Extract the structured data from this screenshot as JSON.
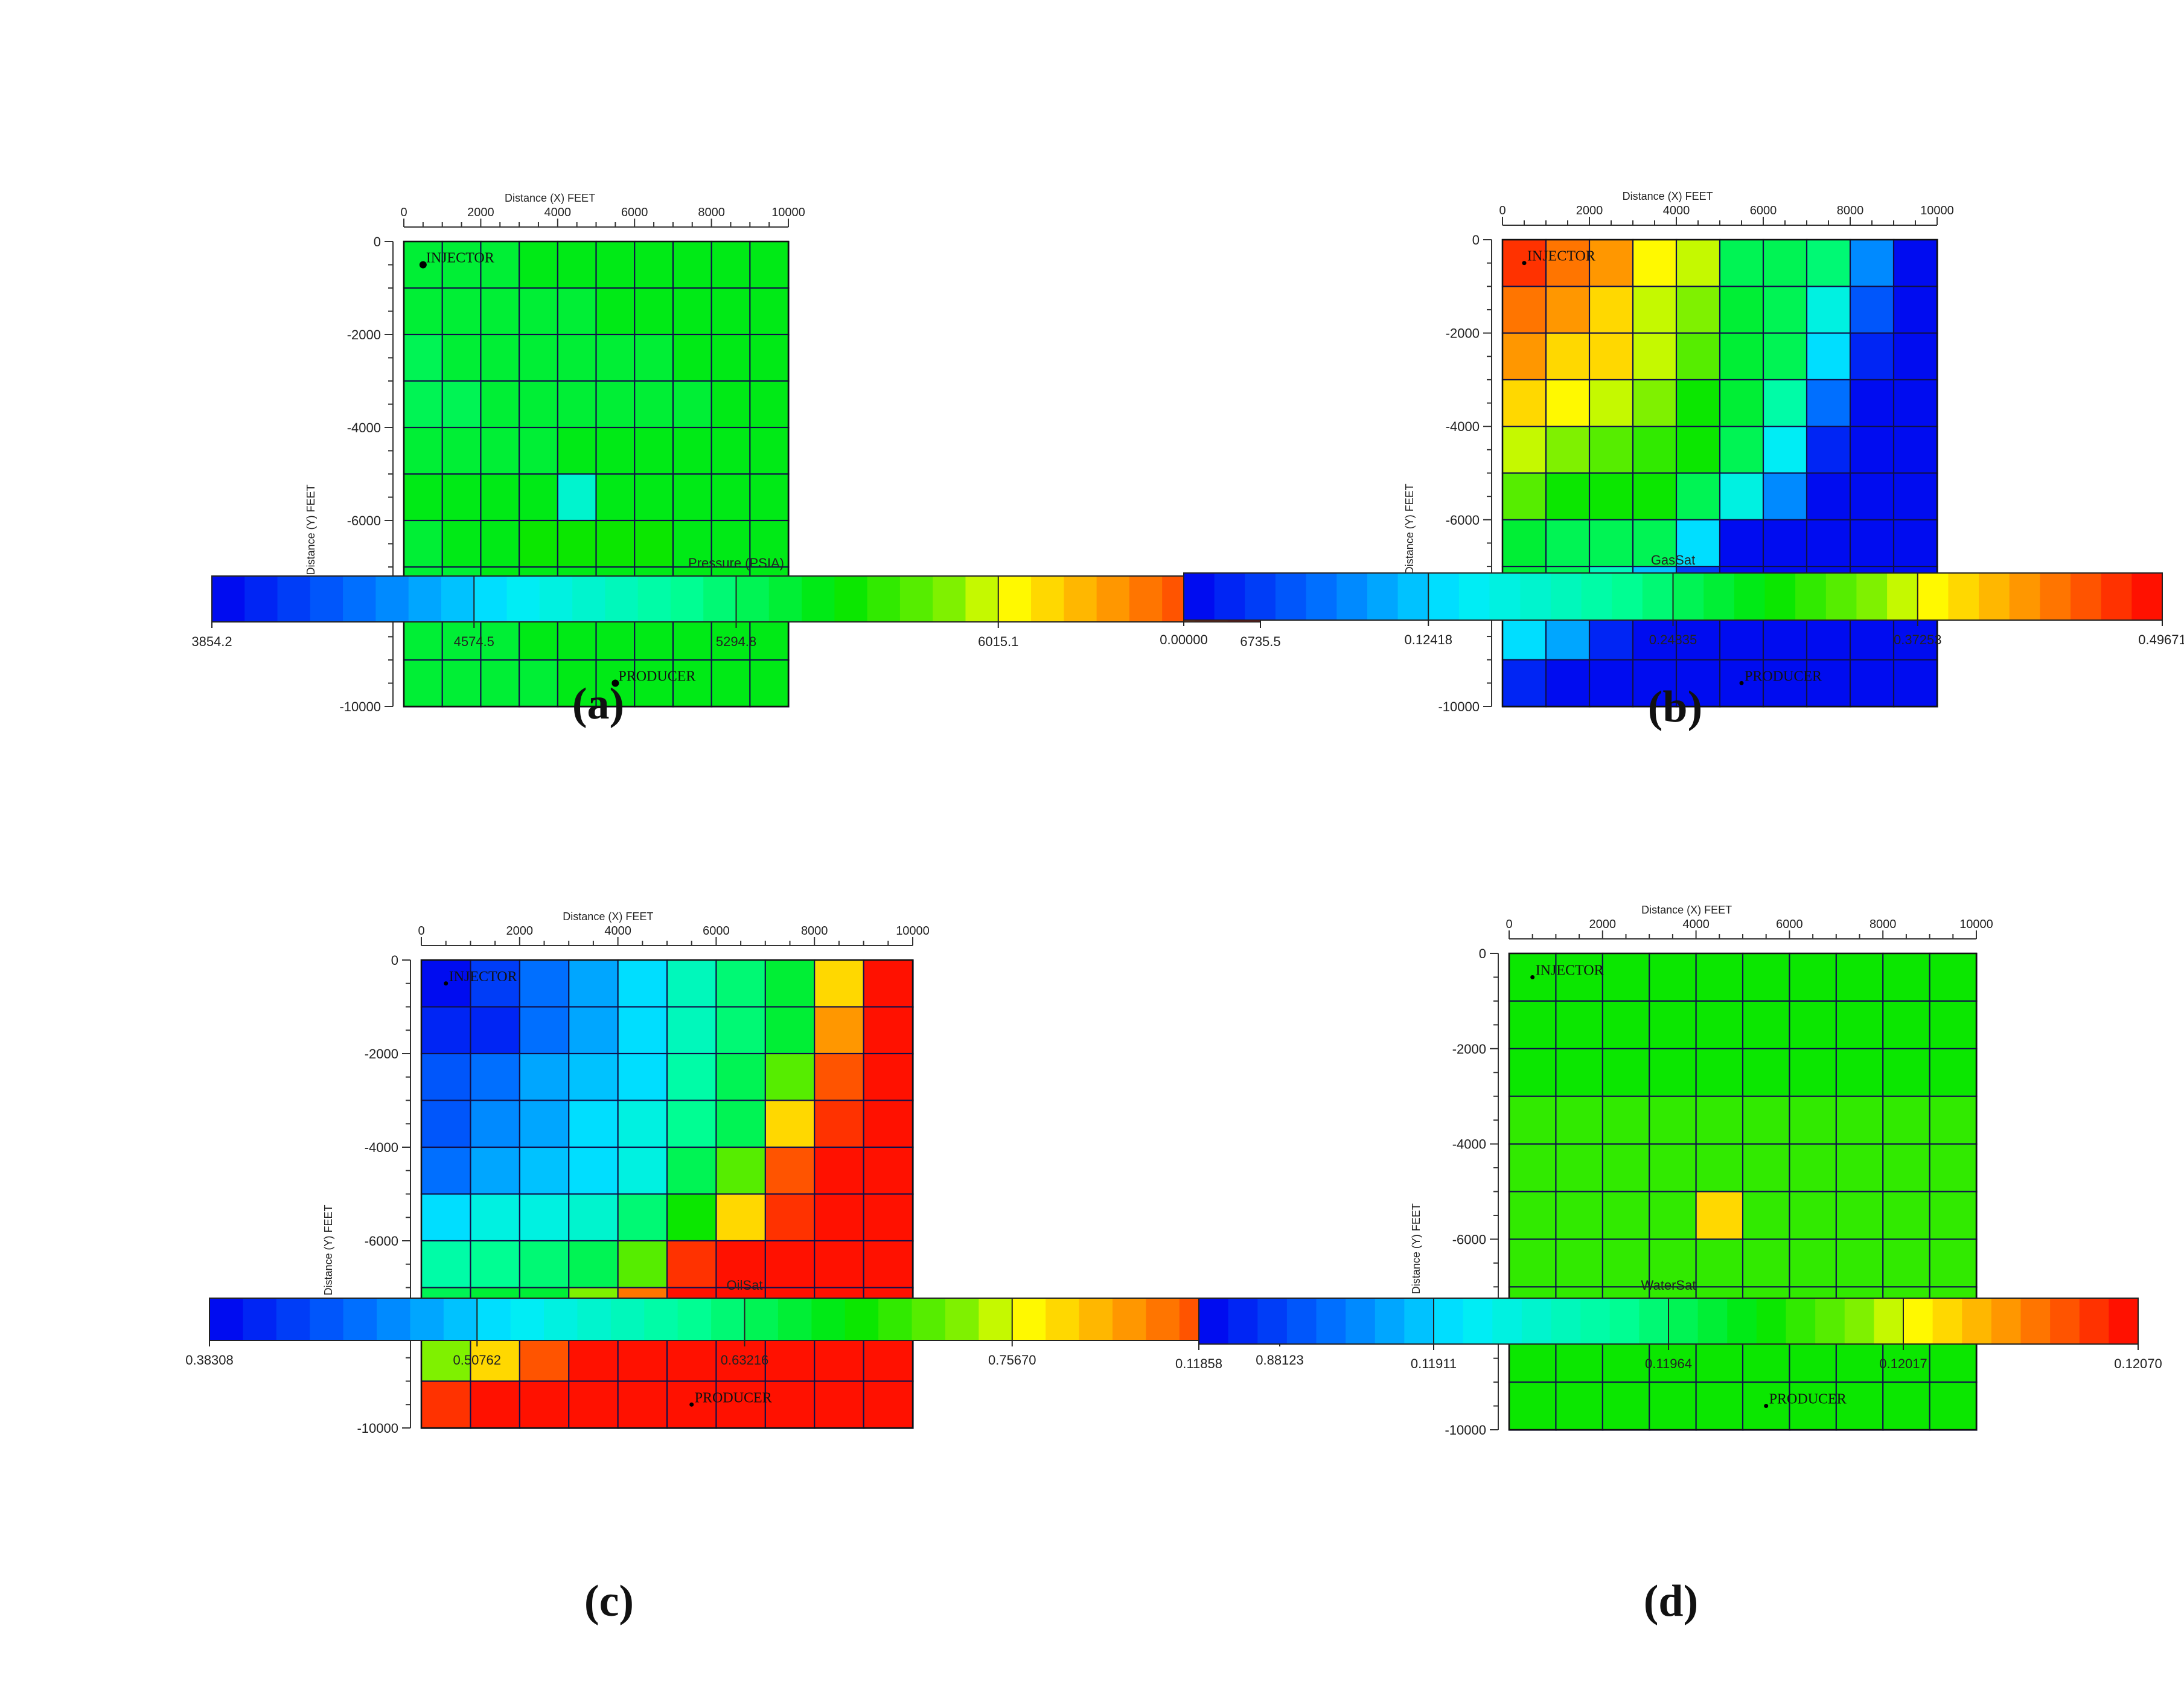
{
  "figure": {
    "panels": [
      {
        "label": "(a)",
        "colorbar_title": "Pressure (PSIA)",
        "colorbar_ticks": [
          "3854.2",
          "4574.5",
          "5294.8",
          "6015.1",
          "6735.5"
        ]
      },
      {
        "label": "(b)",
        "colorbar_title": "GasSat",
        "colorbar_ticks": [
          "0.00000",
          "0.12418",
          "0.24835",
          "0.37253",
          "0.49671"
        ]
      },
      {
        "label": "(c)",
        "colorbar_title": "OilSat",
        "colorbar_ticks": [
          "0.38308",
          "0.50762",
          "0.63216",
          "0.75670",
          "0.88123"
        ]
      },
      {
        "label": "(d)",
        "colorbar_title": "WaterSat",
        "colorbar_ticks": [
          "0.11858",
          "0.11911",
          "0.11964",
          "0.12017",
          "0.12070"
        ]
      }
    ],
    "x_axis_label": "Distance (X)  FEET",
    "y_axis_label": "Distance (Y)  FEET",
    "x_ticks": [
      0,
      2000,
      4000,
      6000,
      8000,
      10000
    ],
    "y_ticks": [
      0,
      -2000,
      -4000,
      -6000,
      -8000,
      -10000
    ],
    "wells": [
      {
        "name": "INJECTOR",
        "x": 500,
        "y": -500
      },
      {
        "name": "PRODUCER",
        "x": 5500,
        "y": -9500
      }
    ]
  },
  "chart_data": [
    {
      "type": "heatmap",
      "title": "",
      "colorbar_title": "Pressure (PSIA)",
      "xlabel": "Distance (X)  FEET",
      "ylabel": "Distance (Y)  FEET",
      "xlim": [
        0,
        10000
      ],
      "ylim": [
        -10000,
        0
      ],
      "value_range": [
        3854.2,
        6735.5
      ],
      "grid": {
        "nx": 10,
        "ny": 10,
        "cell_size_ft": 1000
      },
      "values": [
        [
          5440,
          5450,
          5460,
          5475,
          5490,
          5505,
          5515,
          5525,
          5535,
          5540
        ],
        [
          5420,
          5420,
          5430,
          5445,
          5465,
          5480,
          5495,
          5510,
          5520,
          5525
        ],
        [
          5380,
          5400,
          5410,
          5425,
          5435,
          5455,
          5470,
          5490,
          5505,
          5510
        ],
        [
          5360,
          5380,
          5390,
          5400,
          5410,
          5420,
          5445,
          5465,
          5480,
          5490
        ],
        [
          5420,
          5430,
          5450,
          5470,
          5480,
          5485,
          5495,
          5510,
          5520,
          5525
        ],
        [
          5480,
          5490,
          5500,
          5540,
          4920,
          5560,
          5560,
          5555,
          5550,
          5545
        ],
        [
          5460,
          5490,
          5510,
          5570,
          5600,
          5600,
          5580,
          5560,
          5550,
          5545
        ],
        [
          5430,
          5460,
          5490,
          5530,
          5550,
          5550,
          5540,
          5530,
          5525,
          5520
        ],
        [
          5420,
          5440,
          5460,
          5480,
          5500,
          5510,
          5510,
          5505,
          5500,
          5500
        ],
        [
          5410,
          5430,
          5450,
          5470,
          5490,
          5500,
          5500,
          5495,
          5495,
          5490
        ]
      ]
    },
    {
      "type": "heatmap",
      "title": "",
      "colorbar_title": "GasSat",
      "xlabel": "Distance (X)  FEET",
      "ylabel": "Distance (Y)  FEET",
      "xlim": [
        0,
        10000
      ],
      "ylim": [
        -10000,
        0
      ],
      "value_range": [
        0.0,
        0.49671
      ],
      "grid": {
        "nx": 10,
        "ny": 10,
        "cell_size_ft": 1000
      },
      "values": [
        [
          0.47,
          0.44,
          0.42,
          0.38,
          0.36,
          0.26,
          0.26,
          0.24,
          0.08,
          0.01
        ],
        [
          0.44,
          0.43,
          0.4,
          0.37,
          0.35,
          0.27,
          0.26,
          0.17,
          0.05,
          0.01
        ],
        [
          0.42,
          0.4,
          0.39,
          0.37,
          0.34,
          0.27,
          0.26,
          0.13,
          0.03,
          0.01
        ],
        [
          0.4,
          0.38,
          0.37,
          0.35,
          0.31,
          0.27,
          0.21,
          0.07,
          0.01,
          0.01
        ],
        [
          0.36,
          0.35,
          0.34,
          0.32,
          0.3,
          0.26,
          0.14,
          0.02,
          0.01,
          0.01
        ],
        [
          0.33,
          0.31,
          0.3,
          0.3,
          0.26,
          0.16,
          0.08,
          0.01,
          0.01,
          0.01
        ],
        [
          0.27,
          0.26,
          0.26,
          0.25,
          0.13,
          0.01,
          0.01,
          0.01,
          0.01,
          0.01
        ],
        [
          0.27,
          0.25,
          0.2,
          0.11,
          0.04,
          0.01,
          0.01,
          0.01,
          0.01,
          0.01
        ],
        [
          0.13,
          0.1,
          0.02,
          0.01,
          0.01,
          0.01,
          0.01,
          0.01,
          0.01,
          0.01
        ],
        [
          0.02,
          0.01,
          0.01,
          0.01,
          0.01,
          0.01,
          0.01,
          0.01,
          0.01,
          0.01
        ]
      ]
    },
    {
      "type": "heatmap",
      "title": "",
      "colorbar_title": "OilSat",
      "xlabel": "Distance (X)  FEET",
      "ylabel": "Distance (Y)  FEET",
      "xlim": [
        0,
        10000
      ],
      "ylim": [
        -10000,
        0
      ],
      "value_range": [
        0.38308,
        0.88123
      ],
      "grid": {
        "nx": 10,
        "ny": 10,
        "cell_size_ft": 1000
      },
      "values": [
        [
          0.39,
          0.42,
          0.45,
          0.48,
          0.51,
          0.58,
          0.63,
          0.66,
          0.78,
          0.87
        ],
        [
          0.41,
          0.41,
          0.45,
          0.49,
          0.51,
          0.58,
          0.63,
          0.66,
          0.81,
          0.87
        ],
        [
          0.43,
          0.45,
          0.48,
          0.5,
          0.52,
          0.59,
          0.64,
          0.72,
          0.84,
          0.87
        ],
        [
          0.44,
          0.47,
          0.49,
          0.51,
          0.54,
          0.61,
          0.64,
          0.78,
          0.86,
          0.87
        ],
        [
          0.46,
          0.49,
          0.5,
          0.51,
          0.54,
          0.64,
          0.72,
          0.84,
          0.87,
          0.87
        ],
        [
          0.52,
          0.54,
          0.55,
          0.56,
          0.63,
          0.69,
          0.78,
          0.86,
          0.87,
          0.87
        ],
        [
          0.6,
          0.61,
          0.63,
          0.64,
          0.72,
          0.86,
          0.87,
          0.87,
          0.87,
          0.87
        ],
        [
          0.64,
          0.65,
          0.66,
          0.74,
          0.82,
          0.87,
          0.87,
          0.87,
          0.87,
          0.87
        ],
        [
          0.73,
          0.78,
          0.84,
          0.87,
          0.87,
          0.87,
          0.87,
          0.87,
          0.87,
          0.87
        ],
        [
          0.86,
          0.87,
          0.87,
          0.87,
          0.87,
          0.87,
          0.87,
          0.87,
          0.87,
          0.87
        ]
      ]
    },
    {
      "type": "heatmap",
      "title": "",
      "colorbar_title": "WaterSat",
      "xlabel": "Distance (X)  FEET",
      "ylabel": "Distance (Y)  FEET",
      "xlim": [
        0,
        10000
      ],
      "ylim": [
        -10000,
        0
      ],
      "value_range": [
        0.11858,
        0.1207
      ],
      "grid": {
        "nx": 10,
        "ny": 10,
        "cell_size_ft": 1000
      },
      "values": [
        [
          0.11985,
          0.11985,
          0.11985,
          0.11985,
          0.11985,
          0.11985,
          0.11985,
          0.11985,
          0.11985,
          0.11985
        ],
        [
          0.11988,
          0.11988,
          0.11988,
          0.11988,
          0.11988,
          0.11988,
          0.11988,
          0.11988,
          0.11988,
          0.11988
        ],
        [
          0.1199,
          0.1199,
          0.1199,
          0.1199,
          0.1199,
          0.1199,
          0.1199,
          0.1199,
          0.1199,
          0.1199
        ],
        [
          0.11992,
          0.11992,
          0.11992,
          0.11992,
          0.11992,
          0.11992,
          0.11992,
          0.11992,
          0.11992,
          0.11992
        ],
        [
          0.11992,
          0.11992,
          0.11992,
          0.11992,
          0.11995,
          0.11992,
          0.11992,
          0.11992,
          0.11992,
          0.11992
        ],
        [
          0.11995,
          0.11995,
          0.11995,
          0.11995,
          0.1203,
          0.11995,
          0.11995,
          0.11995,
          0.11995,
          0.11995
        ],
        [
          0.11995,
          0.11995,
          0.11995,
          0.11995,
          0.11995,
          0.11995,
          0.11995,
          0.11995,
          0.11995,
          0.11995
        ],
        [
          0.11992,
          0.11992,
          0.11992,
          0.11992,
          0.11992,
          0.11992,
          0.11992,
          0.11992,
          0.11992,
          0.11992
        ],
        [
          0.1199,
          0.1199,
          0.1199,
          0.1199,
          0.1199,
          0.1199,
          0.1199,
          0.1199,
          0.1199,
          0.1199
        ],
        [
          0.11988,
          0.11988,
          0.11988,
          0.11988,
          0.11988,
          0.11988,
          0.11988,
          0.11988,
          0.11988,
          0.11988
        ]
      ]
    }
  ]
}
